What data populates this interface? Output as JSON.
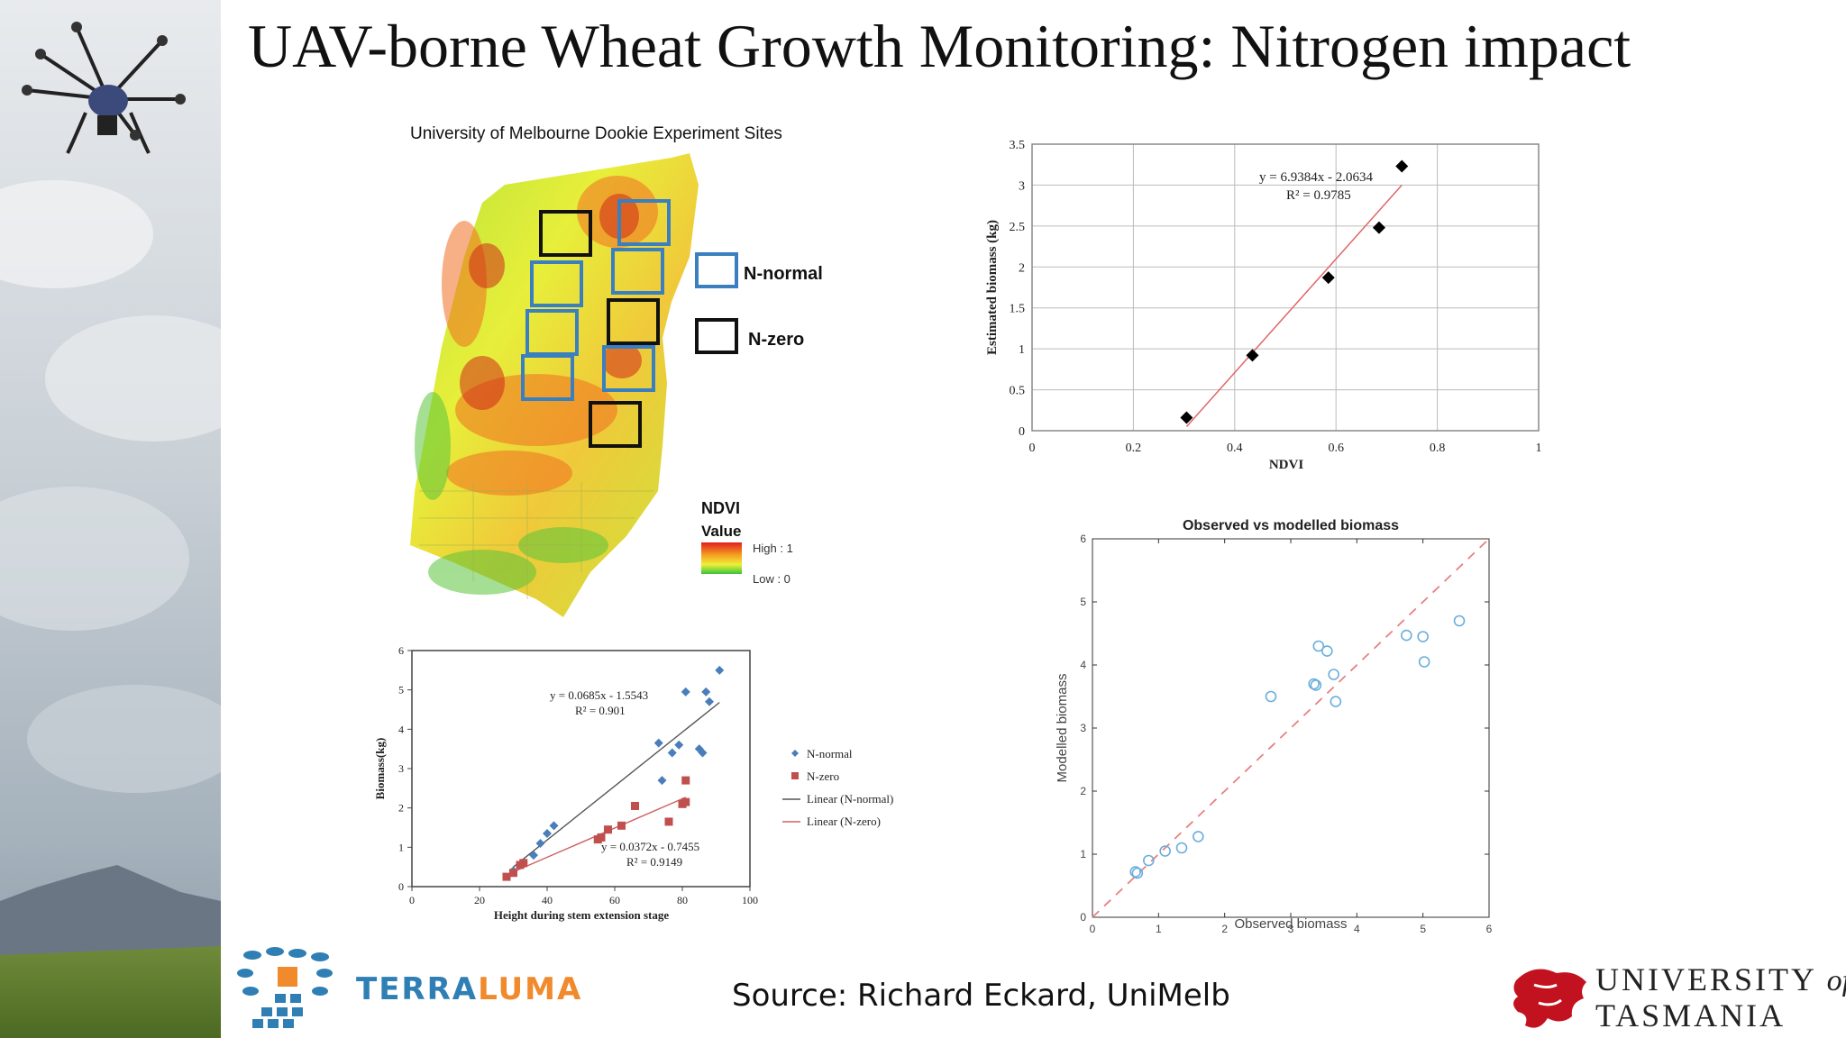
{
  "slide": {
    "title": "UAV-borne Wheat Growth Monitoring: Nitrogen impact",
    "source": "Source: Richard Eckard, UniMelb"
  },
  "map": {
    "title": "University of Melbourne Dookie Experiment Sites",
    "legend_normal": "N-normal",
    "legend_zero": "N-zero",
    "ndvi_label": "NDVI",
    "value_label": "Value",
    "high_label": "High : 1",
    "low_label": "Low : 0",
    "colors": {
      "normal_box": "#3a7fbf",
      "zero_box": "#111111"
    }
  },
  "logos": {
    "terraluma_a": "TERRA",
    "terraluma_b": "LUMA",
    "utas_line1": "UNIVERSITY",
    "utas_of": "of",
    "utas_line2": "TASMANIA"
  },
  "chart_data": [
    {
      "type": "scatter",
      "xlabel": "NDVI",
      "ylabel": "Estimated biomass (kg)",
      "xlim": [
        0,
        1
      ],
      "ylim": [
        0,
        3.5
      ],
      "xticks": [
        "0",
        "0.2",
        "0.4",
        "0.6",
        "0.8",
        "1"
      ],
      "yticks": [
        "0",
        "0.5",
        "1",
        "1.5",
        "2",
        "2.5",
        "3",
        "3.5"
      ],
      "grid": true,
      "equation": "y = 6.9384x - 2.0634",
      "r2": "R² = 0.9785",
      "points": [
        [
          0.305,
          0.16
        ],
        [
          0.435,
          0.92
        ],
        [
          0.585,
          1.87
        ],
        [
          0.685,
          2.48
        ],
        [
          0.73,
          3.23
        ]
      ],
      "trendline": [
        [
          0.305,
          0.05
        ],
        [
          0.73,
          3.0
        ]
      ],
      "colors": {
        "points": "#000000",
        "trend": "#e06666"
      }
    },
    {
      "type": "scatter",
      "xlabel": "Height during stem extension stage",
      "ylabel": "Biomass(kg)",
      "xlim": [
        0,
        100
      ],
      "ylim": [
        0,
        6
      ],
      "xticks": [
        "0",
        "20",
        "40",
        "60",
        "80",
        "100"
      ],
      "yticks": [
        "0",
        "1",
        "2",
        "3",
        "4",
        "5",
        "6"
      ],
      "grid": false,
      "series": [
        {
          "name": "N-normal",
          "marker": "diamond",
          "color": "#4a7ebb",
          "points": [
            [
              30,
              0.4
            ],
            [
              33,
              0.6
            ],
            [
              36,
              0.8
            ],
            [
              38,
              1.1
            ],
            [
              40,
              1.35
            ],
            [
              42,
              1.55
            ],
            [
              73,
              3.65
            ],
            [
              74,
              2.7
            ],
            [
              77,
              3.4
            ],
            [
              79,
              3.6
            ],
            [
              81,
              4.95
            ],
            [
              85,
              3.5
            ],
            [
              86,
              3.4
            ],
            [
              87,
              4.95
            ],
            [
              88,
              4.7
            ],
            [
              91,
              5.5
            ]
          ],
          "equation": "y = 0.0685x - 1.5543",
          "r2": "R² = 0.901"
        },
        {
          "name": "N-zero",
          "marker": "square",
          "color": "#c0504d",
          "points": [
            [
              28,
              0.25
            ],
            [
              30,
              0.35
            ],
            [
              32,
              0.55
            ],
            [
              33,
              0.6
            ],
            [
              55,
              1.2
            ],
            [
              56,
              1.25
            ],
            [
              58,
              1.45
            ],
            [
              62,
              1.55
            ],
            [
              66,
              2.05
            ],
            [
              76,
              1.65
            ],
            [
              80,
              2.1
            ],
            [
              81,
              2.15
            ],
            [
              81,
              2.7
            ]
          ],
          "equation": "y = 0.0372x - 0.7455",
          "r2": "R² = 0.9149"
        }
      ],
      "trendlines": [
        {
          "name": "Linear (N-normal)",
          "color": "#555555",
          "points": [
            [
              30,
              0.5
            ],
            [
              91,
              4.68
            ]
          ]
        },
        {
          "name": "Linear (N-zero)",
          "color": "#d06060",
          "points": [
            [
              28,
              0.3
            ],
            [
              81,
              2.27
            ]
          ]
        }
      ]
    },
    {
      "type": "scatter",
      "title": "Observed vs modelled biomass",
      "xlabel": "Observed biomass",
      "ylabel": "Modelled biomass",
      "xlim": [
        0,
        6
      ],
      "ylim": [
        0,
        6
      ],
      "xticks": [
        "0",
        "1",
        "2",
        "3",
        "4",
        "5",
        "6"
      ],
      "yticks": [
        "0",
        "1",
        "2",
        "3",
        "4",
        "5",
        "6"
      ],
      "points": [
        [
          0.65,
          0.72
        ],
        [
          0.68,
          0.7
        ],
        [
          0.85,
          0.9
        ],
        [
          1.1,
          1.05
        ],
        [
          1.35,
          1.1
        ],
        [
          1.6,
          1.28
        ],
        [
          2.7,
          3.5
        ],
        [
          3.35,
          3.7
        ],
        [
          3.38,
          3.68
        ],
        [
          3.42,
          4.3
        ],
        [
          3.55,
          4.22
        ],
        [
          3.65,
          3.85
        ],
        [
          3.68,
          3.42
        ],
        [
          4.75,
          4.47
        ],
        [
          5.0,
          4.45
        ],
        [
          5.02,
          4.05
        ],
        [
          5.55,
          4.7
        ]
      ],
      "reference_line": [
        [
          0,
          0
        ],
        [
          6,
          6
        ]
      ],
      "colors": {
        "points": "#6aaedc",
        "reference": "#e88080"
      }
    }
  ]
}
